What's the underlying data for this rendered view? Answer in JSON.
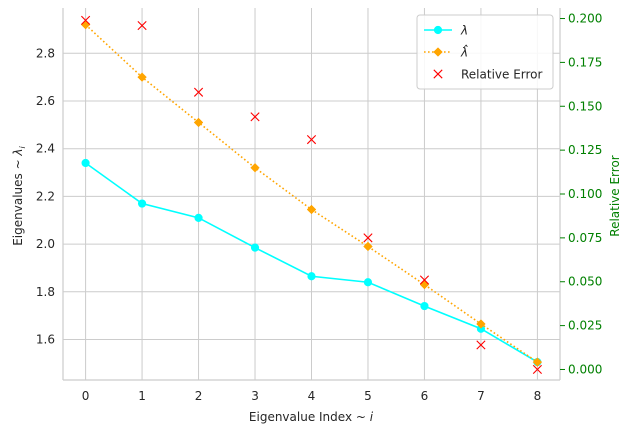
{
  "chart_data": {
    "type": "line",
    "title": "",
    "xlabel": "Eigenvalue Index ~ ",
    "xlabel_var": "i",
    "ylabel": "Eigenvalues ~ ",
    "ylabel_var": "λ",
    "ylabel_sub": "i",
    "y2label": "Relative Error",
    "x": [
      0,
      1,
      2,
      3,
      4,
      5,
      6,
      7,
      8
    ],
    "xlim": [
      -0.4,
      8.4
    ],
    "ylim": [
      1.43,
      2.99
    ],
    "y2lim": [
      -0.006,
      0.206
    ],
    "xticks": [
      "0",
      "1",
      "2",
      "3",
      "4",
      "5",
      "6",
      "7",
      "8"
    ],
    "yticks": [
      {
        "v": 1.6,
        "label": "1.6"
      },
      {
        "v": 1.8,
        "label": "1.8"
      },
      {
        "v": 2.0,
        "label": "2.0"
      },
      {
        "v": 2.2,
        "label": "2.2"
      },
      {
        "v": 2.4,
        "label": "2.4"
      },
      {
        "v": 2.6,
        "label": "2.6"
      },
      {
        "v": 2.8,
        "label": "2.8"
      }
    ],
    "y2ticks": [
      {
        "v": 0.0,
        "label": "0.000"
      },
      {
        "v": 0.025,
        "label": "0.025"
      },
      {
        "v": 0.05,
        "label": "0.050"
      },
      {
        "v": 0.075,
        "label": "0.075"
      },
      {
        "v": 0.1,
        "label": "0.100"
      },
      {
        "v": 0.125,
        "label": "0.125"
      },
      {
        "v": 0.15,
        "label": "0.150"
      },
      {
        "v": 0.175,
        "label": "0.175"
      },
      {
        "v": 0.2,
        "label": "0.200"
      }
    ],
    "grid": true,
    "legend_position": "top-right",
    "series": [
      {
        "name": "λ",
        "axis": "left",
        "marker": "circle",
        "line": "solid",
        "color": "#00ffff",
        "values": [
          2.34,
          2.17,
          2.11,
          1.985,
          1.865,
          1.84,
          1.74,
          1.645,
          1.505
        ]
      },
      {
        "name": "λ̂",
        "axis": "left",
        "marker": "diamond",
        "line": "dotted",
        "color": "#ffa500",
        "values": [
          2.92,
          2.7,
          2.51,
          2.32,
          2.145,
          1.99,
          1.83,
          1.665,
          1.505
        ]
      },
      {
        "name": "Relative Error",
        "axis": "right",
        "marker": "x",
        "line": "none",
        "color": "#ff0000",
        "values": [
          0.199,
          0.196,
          0.158,
          0.144,
          0.131,
          0.075,
          0.051,
          0.014,
          0.0
        ]
      }
    ],
    "colors": {
      "y2_axis": "#008000",
      "grid": "#cccccc",
      "text": "#262626"
    }
  }
}
